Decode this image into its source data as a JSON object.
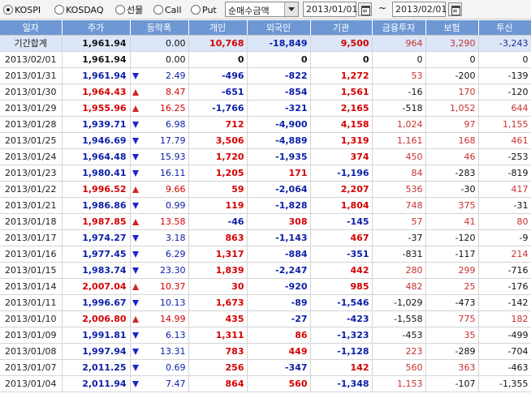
{
  "toolbar": {
    "markets": [
      {
        "label": "KOSPI",
        "selected": true
      },
      {
        "label": "KOSDAQ",
        "selected": false
      },
      {
        "label": "선물",
        "selected": false
      },
      {
        "label": "Call",
        "selected": false
      },
      {
        "label": "Put",
        "selected": false
      }
    ],
    "mode_select": {
      "value": "순매수금액"
    },
    "start_date": "2013/01/01",
    "range_separator": "~",
    "end_date": "2013/02/01"
  },
  "table": {
    "headers": [
      "일자",
      "주가",
      "등락폭",
      "개인",
      "외국인",
      "기관",
      "금융투자",
      "보험",
      "투신"
    ],
    "total_row": {
      "date": "기간합계",
      "close": "1,961.94",
      "change": "0.00",
      "individual": "10,768",
      "foreign": "-18,849",
      "institution": "9,500",
      "fin_invest": "964",
      "insurance": "3,290",
      "trust": "-3,243"
    },
    "rows": [
      {
        "date": "2013/02/01",
        "close": "1,961.94",
        "dir": "none",
        "change": "0.00",
        "individual": "0",
        "foreign": "0",
        "institution": "0",
        "fin_invest": "0",
        "insurance": "0",
        "trust": "0"
      },
      {
        "date": "2013/01/31",
        "close": "1,961.94",
        "dir": "down",
        "change": "2.49",
        "individual": "-496",
        "foreign": "-822",
        "institution": "1,272",
        "fin_invest": "53",
        "insurance": "-200",
        "trust": "-139"
      },
      {
        "date": "2013/01/30",
        "close": "1,964.43",
        "dir": "up",
        "change": "8.47",
        "individual": "-651",
        "foreign": "-854",
        "institution": "1,561",
        "fin_invest": "-16",
        "insurance": "170",
        "trust": "-120"
      },
      {
        "date": "2013/01/29",
        "close": "1,955.96",
        "dir": "up",
        "change": "16.25",
        "individual": "-1,766",
        "foreign": "-321",
        "institution": "2,165",
        "fin_invest": "-518",
        "insurance": "1,052",
        "trust": "644"
      },
      {
        "date": "2013/01/28",
        "close": "1,939.71",
        "dir": "down",
        "change": "6.98",
        "individual": "712",
        "foreign": "-4,900",
        "institution": "4,158",
        "fin_invest": "1,024",
        "insurance": "97",
        "trust": "1,155"
      },
      {
        "date": "2013/01/25",
        "close": "1,946.69",
        "dir": "down",
        "change": "17.79",
        "individual": "3,506",
        "foreign": "-4,889",
        "institution": "1,319",
        "fin_invest": "1,161",
        "insurance": "168",
        "trust": "461"
      },
      {
        "date": "2013/01/24",
        "close": "1,964.48",
        "dir": "down",
        "change": "15.93",
        "individual": "1,720",
        "foreign": "-1,935",
        "institution": "374",
        "fin_invest": "450",
        "insurance": "46",
        "trust": "-253"
      },
      {
        "date": "2013/01/23",
        "close": "1,980.41",
        "dir": "down",
        "change": "16.11",
        "individual": "1,205",
        "foreign": "171",
        "institution": "-1,196",
        "fin_invest": "84",
        "insurance": "-283",
        "trust": "-819"
      },
      {
        "date": "2013/01/22",
        "close": "1,996.52",
        "dir": "up",
        "change": "9.66",
        "individual": "59",
        "foreign": "-2,064",
        "institution": "2,207",
        "fin_invest": "536",
        "insurance": "-30",
        "trust": "417"
      },
      {
        "date": "2013/01/21",
        "close": "1,986.86",
        "dir": "down",
        "change": "0.99",
        "individual": "119",
        "foreign": "-1,828",
        "institution": "1,804",
        "fin_invest": "748",
        "insurance": "375",
        "trust": "-31"
      },
      {
        "date": "2013/01/18",
        "close": "1,987.85",
        "dir": "up",
        "change": "13.58",
        "individual": "-46",
        "foreign": "308",
        "institution": "-145",
        "fin_invest": "57",
        "insurance": "41",
        "trust": "80"
      },
      {
        "date": "2013/01/17",
        "close": "1,974.27",
        "dir": "down",
        "change": "3.18",
        "individual": "863",
        "foreign": "-1,143",
        "institution": "467",
        "fin_invest": "-37",
        "insurance": "-120",
        "trust": "-9"
      },
      {
        "date": "2013/01/16",
        "close": "1,977.45",
        "dir": "down",
        "change": "6.29",
        "individual": "1,317",
        "foreign": "-884",
        "institution": "-351",
        "fin_invest": "-831",
        "insurance": "-117",
        "trust": "214"
      },
      {
        "date": "2013/01/15",
        "close": "1,983.74",
        "dir": "down",
        "change": "23.30",
        "individual": "1,839",
        "foreign": "-2,247",
        "institution": "442",
        "fin_invest": "280",
        "insurance": "299",
        "trust": "-716"
      },
      {
        "date": "2013/01/14",
        "close": "2,007.04",
        "dir": "up",
        "change": "10.37",
        "individual": "30",
        "foreign": "-920",
        "institution": "985",
        "fin_invest": "482",
        "insurance": "25",
        "trust": "-176"
      },
      {
        "date": "2013/01/11",
        "close": "1,996.67",
        "dir": "down",
        "change": "10.13",
        "individual": "1,673",
        "foreign": "-89",
        "institution": "-1,546",
        "fin_invest": "-1,029",
        "insurance": "-473",
        "trust": "-142"
      },
      {
        "date": "2013/01/10",
        "close": "2,006.80",
        "dir": "up",
        "change": "14.99",
        "individual": "435",
        "foreign": "-27",
        "institution": "-423",
        "fin_invest": "-1,558",
        "insurance": "775",
        "trust": "182"
      },
      {
        "date": "2013/01/09",
        "close": "1,991.81",
        "dir": "down",
        "change": "6.13",
        "individual": "1,311",
        "foreign": "86",
        "institution": "-1,323",
        "fin_invest": "-453",
        "insurance": "35",
        "trust": "-499"
      },
      {
        "date": "2013/01/08",
        "close": "1,997.94",
        "dir": "down",
        "change": "13.31",
        "individual": "783",
        "foreign": "449",
        "institution": "-1,128",
        "fin_invest": "223",
        "insurance": "-289",
        "trust": "-704"
      },
      {
        "date": "2013/01/07",
        "close": "2,011.25",
        "dir": "down",
        "change": "0.69",
        "individual": "256",
        "foreign": "-347",
        "institution": "142",
        "fin_invest": "560",
        "insurance": "363",
        "trust": "-463"
      },
      {
        "date": "2013/01/04",
        "close": "2,011.94",
        "dir": "down",
        "change": "7.47",
        "individual": "864",
        "foreign": "560",
        "institution": "-1,348",
        "fin_invest": "1,153",
        "insurance": "-107",
        "trust": "-1,355"
      }
    ]
  },
  "colors": {
    "header_bg": "#6e98d4",
    "total_row_bg": "#dbe6f6",
    "positive": "#d40000",
    "negative": "#0a1ea8",
    "up_arrow": "#d22222",
    "down_arrow": "#2222cc"
  }
}
